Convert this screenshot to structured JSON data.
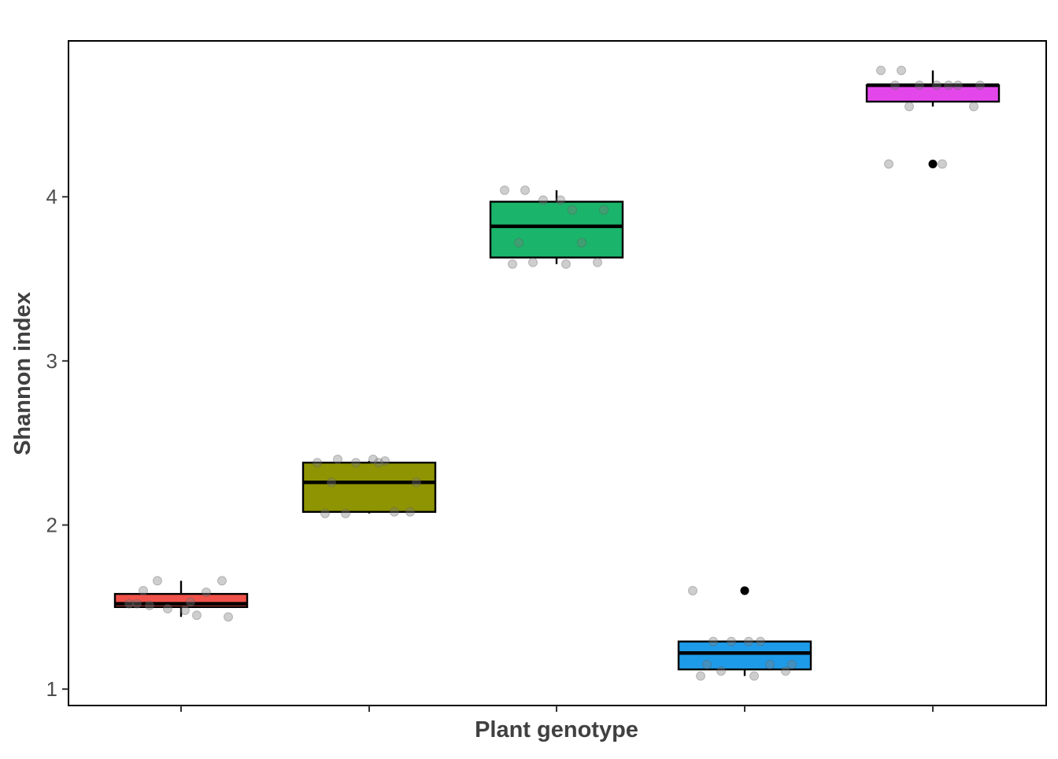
{
  "chart_data": {
    "type": "box",
    "title": "",
    "xlabel": "Plant genotype",
    "ylabel": "Shannon index",
    "ylim": [
      0.9,
      4.95
    ],
    "yticks": [
      1,
      2,
      3,
      4
    ],
    "grid": false,
    "legend": "none",
    "categories": [
      "",
      "",
      "",
      "",
      ""
    ],
    "series": [
      {
        "color": "#f0524a",
        "box": {
          "q1": 1.5,
          "median": 1.52,
          "q3": 1.58,
          "whisker_low": 1.44,
          "whisker_high": 1.66
        },
        "outliers": [],
        "points": [
          1.52,
          1.51,
          1.49,
          1.48,
          1.45,
          1.44,
          1.6,
          1.59,
          1.66,
          1.66,
          1.52,
          1.53
        ]
      },
      {
        "color": "#8e9402",
        "box": {
          "q1": 2.08,
          "median": 2.26,
          "q3": 2.38,
          "whisker_low": 2.07,
          "whisker_high": 2.39
        },
        "outliers": [],
        "points": [
          2.38,
          2.4,
          2.38,
          2.4,
          2.39,
          2.26,
          2.26,
          2.08,
          2.07,
          2.08,
          2.07,
          2.38
        ]
      },
      {
        "color": "#1ab46b",
        "box": {
          "q1": 3.63,
          "median": 3.82,
          "q3": 3.97,
          "whisker_low": 3.59,
          "whisker_high": 4.04
        },
        "outliers": [],
        "points": [
          4.04,
          4.04,
          3.98,
          3.98,
          3.92,
          3.92,
          3.72,
          3.72,
          3.6,
          3.6,
          3.59,
          3.59
        ]
      },
      {
        "color": "#1e9be8",
        "box": {
          "q1": 1.12,
          "median": 1.22,
          "q3": 1.29,
          "whisker_low": 1.08,
          "whisker_high": 1.29
        },
        "outliers": [
          1.6
        ],
        "points": [
          1.6,
          1.29,
          1.29,
          1.29,
          1.29,
          1.15,
          1.15,
          1.15,
          1.11,
          1.11,
          1.08,
          1.08
        ]
      },
      {
        "color": "#e347ea",
        "box": {
          "q1": 4.58,
          "median": 4.68,
          "q3": 4.68,
          "whisker_low": 4.55,
          "whisker_high": 4.77
        },
        "outliers": [
          4.2
        ],
        "points": [
          4.77,
          4.77,
          4.68,
          4.68,
          4.68,
          4.68,
          4.68,
          4.68,
          4.55,
          4.55,
          4.2,
          4.2
        ]
      }
    ]
  }
}
